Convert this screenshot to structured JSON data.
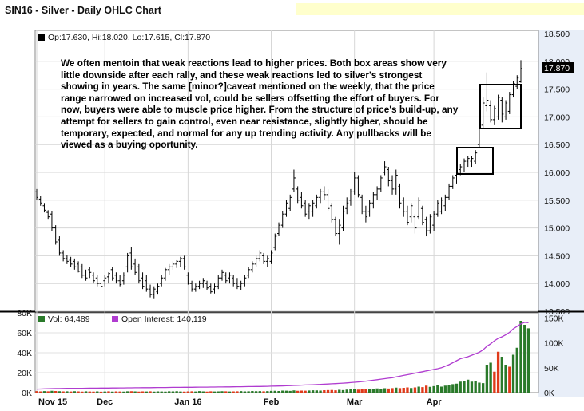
{
  "header": {
    "title": "SIN16 - Silver - Daily OHLC Chart"
  },
  "price_panel": {
    "legend": "Op:17.630, Hi:18.020, Lo:17.615, Cl:17.870",
    "last_price_tag": "17.870",
    "annotation": "We often mentoin that weak reactions lead to higher prices.  Both box areas show very little downside after each rally, and these weak reactions led to silver's strongest showing in years.  The same [minor?]caveat mentioned on the weekly, that the price range narrowed on increased vol, could be sellers offsetting the effort of buyers.  For now, buyers were able to muscle price higher.  From the structure of price's build-up, any attempt for sellers to gain control, even near resistance, slightly higher, should be temporary, expected, and normal for any up trending activity.  Any pullbacks will be viewed as a buying oportunity."
  },
  "volume_panel": {
    "vol_legend": "Vol: 64,489",
    "oi_legend": "Open Interest: 140,119"
  },
  "colors": {
    "ohlc": "#000000",
    "vol_up": "#2a7a2a",
    "vol_down": "#e03a1a",
    "open_interest": "#b03cd0",
    "tag_bg": "#000000",
    "axis_panel": "#e8eef8"
  },
  "chart_data": [
    {
      "type": "ohlc",
      "title": "SIN16 - Silver - Daily OHLC Chart",
      "x_tick_labels": [
        "Nov 15",
        "Dec",
        "Jan 16",
        "Feb",
        "Mar",
        "Apr"
      ],
      "y_ticks": [
        13.5,
        14.0,
        14.5,
        15.0,
        15.5,
        16.0,
        16.5,
        17.0,
        17.5,
        18.0,
        18.5
      ],
      "y_tick_labels": [
        "13.500",
        "14.000",
        "14.500",
        "15.000",
        "15.500",
        "16.000",
        "16.500",
        "17.000",
        "17.500",
        "18.000",
        "18.500"
      ],
      "ylim": [
        13.5,
        18.5
      ],
      "grid": true,
      "series": [
        {
          "name": "Silver",
          "high": [
            15.7,
            15.58,
            15.45,
            15.32,
            15.3,
            15.05,
            14.85,
            14.6,
            14.52,
            14.48,
            14.45,
            14.4,
            14.35,
            14.25,
            14.3,
            14.2,
            14.15,
            14.05,
            14.15,
            14.2,
            14.3,
            14.2,
            14.15,
            14.2,
            14.55,
            14.65,
            14.45,
            14.35,
            14.2,
            14.15,
            13.98,
            13.95,
            14.0,
            14.15,
            14.28,
            14.35,
            14.4,
            14.42,
            14.48,
            14.5,
            14.2,
            14.05,
            14.0,
            14.05,
            14.1,
            14.05,
            14.0,
            14.0,
            14.15,
            14.25,
            14.2,
            14.2,
            14.15,
            14.1,
            14.05,
            14.15,
            14.3,
            14.4,
            14.5,
            14.6,
            14.55,
            14.5,
            14.6,
            14.9,
            15.1,
            15.3,
            15.5,
            15.6,
            16.05,
            15.75,
            15.65,
            15.5,
            15.45,
            15.5,
            15.6,
            15.7,
            15.75,
            15.7,
            15.45,
            15.2,
            15.15,
            15.4,
            15.55,
            15.7,
            16.0,
            15.95,
            15.6,
            15.4,
            15.5,
            15.65,
            15.75,
            15.95,
            16.2,
            16.1,
            15.95,
            16.05,
            15.8,
            15.55,
            15.4,
            15.45,
            15.25,
            15.55,
            15.4,
            15.2,
            15.25,
            15.3,
            15.5,
            15.55,
            15.6,
            15.8,
            15.95,
            16.05,
            16.15,
            16.25,
            16.3,
            16.3,
            16.4,
            16.9,
            17.35,
            17.8,
            17.3,
            17.2,
            17.4,
            17.35,
            17.3,
            17.45,
            17.65,
            17.75,
            18.02
          ],
          "low": [
            15.5,
            15.4,
            15.28,
            15.15,
            14.95,
            14.7,
            14.5,
            14.4,
            14.35,
            14.3,
            14.25,
            14.2,
            14.1,
            14.05,
            14.1,
            14.0,
            13.95,
            13.9,
            13.95,
            14.0,
            14.05,
            14.0,
            13.95,
            13.98,
            14.2,
            14.25,
            14.15,
            14.0,
            13.9,
            13.85,
            13.75,
            13.72,
            13.8,
            13.95,
            14.05,
            14.15,
            14.25,
            14.28,
            14.3,
            14.25,
            13.98,
            13.85,
            13.85,
            13.9,
            13.92,
            13.88,
            13.82,
            13.82,
            13.9,
            14.05,
            14.0,
            14.0,
            13.95,
            13.9,
            13.88,
            13.95,
            14.1,
            14.2,
            14.3,
            14.4,
            14.35,
            14.3,
            14.35,
            14.6,
            14.85,
            15.0,
            15.2,
            15.3,
            15.65,
            15.45,
            15.35,
            15.2,
            15.15,
            15.2,
            15.35,
            15.45,
            15.5,
            15.3,
            15.1,
            14.85,
            14.7,
            14.95,
            15.25,
            15.4,
            15.6,
            15.55,
            15.25,
            15.1,
            15.2,
            15.35,
            15.5,
            15.65,
            15.95,
            15.75,
            15.6,
            15.6,
            15.35,
            15.2,
            15.05,
            15.1,
            14.9,
            15.15,
            15.05,
            14.85,
            14.9,
            14.95,
            15.2,
            15.25,
            15.3,
            15.5,
            15.7,
            15.8,
            15.95,
            16.0,
            16.1,
            16.1,
            16.15,
            16.45,
            16.8,
            17.1,
            16.9,
            16.85,
            16.95,
            16.9,
            16.95,
            17.05,
            17.35,
            17.5,
            17.615
          ],
          "open": [
            15.65,
            15.52,
            15.4,
            15.28,
            15.25,
            15.0,
            14.78,
            14.55,
            14.45,
            14.42,
            14.4,
            14.35,
            14.3,
            14.15,
            14.25,
            14.15,
            14.1,
            14.0,
            14.05,
            14.12,
            14.25,
            14.15,
            14.05,
            14.05,
            14.3,
            14.55,
            14.35,
            14.3,
            14.1,
            14.05,
            13.9,
            13.8,
            13.85,
            14.0,
            14.1,
            14.25,
            14.3,
            14.35,
            14.4,
            14.45,
            14.15,
            14.0,
            13.9,
            13.95,
            14.0,
            14.0,
            13.95,
            13.9,
            13.95,
            14.1,
            14.15,
            14.1,
            14.1,
            14.0,
            13.95,
            14.0,
            14.15,
            14.25,
            14.35,
            14.45,
            14.5,
            14.4,
            14.4,
            14.65,
            14.9,
            15.05,
            15.25,
            15.35,
            15.7,
            15.7,
            15.55,
            15.45,
            15.3,
            15.3,
            15.4,
            15.55,
            15.65,
            15.6,
            15.4,
            15.15,
            14.9,
            15.0,
            15.35,
            15.5,
            15.65,
            15.9,
            15.55,
            15.3,
            15.3,
            15.45,
            15.6,
            15.7,
            16.0,
            16.05,
            15.85,
            15.7,
            15.75,
            15.5,
            15.3,
            15.2,
            15.2,
            15.2,
            15.35,
            15.15,
            14.95,
            15.05,
            15.25,
            15.3,
            15.4,
            15.55,
            15.75,
            15.95,
            16.05,
            16.15,
            16.2,
            16.2,
            16.2,
            16.5,
            16.85,
            17.2,
            17.2,
            16.95,
            17.0,
            17.3,
            17.0,
            17.1,
            17.4,
            17.55,
            17.63
          ],
          "close": [
            15.55,
            15.45,
            15.32,
            15.2,
            15.0,
            14.75,
            14.55,
            14.45,
            14.4,
            14.35,
            14.3,
            14.22,
            14.15,
            14.1,
            14.2,
            14.05,
            14.0,
            13.95,
            14.1,
            14.18,
            14.1,
            14.05,
            13.98,
            14.15,
            14.5,
            14.3,
            14.2,
            14.05,
            13.95,
            13.9,
            13.8,
            13.9,
            13.95,
            14.1,
            14.25,
            14.3,
            14.35,
            14.4,
            14.45,
            14.3,
            14.0,
            13.9,
            13.95,
            14.0,
            14.05,
            13.92,
            13.85,
            13.95,
            14.1,
            14.2,
            14.05,
            14.15,
            14.0,
            13.95,
            14.0,
            14.1,
            14.25,
            14.35,
            14.45,
            14.55,
            14.4,
            14.45,
            14.55,
            14.85,
            15.05,
            15.25,
            15.45,
            15.55,
            15.9,
            15.5,
            15.4,
            15.25,
            15.4,
            15.45,
            15.55,
            15.65,
            15.6,
            15.35,
            15.15,
            14.9,
            15.05,
            15.3,
            15.45,
            15.65,
            15.9,
            15.6,
            15.3,
            15.2,
            15.45,
            15.6,
            15.7,
            15.9,
            16.1,
            15.85,
            15.7,
            15.95,
            15.45,
            15.3,
            15.1,
            15.4,
            15.0,
            15.5,
            15.1,
            14.95,
            15.2,
            15.25,
            15.45,
            15.5,
            15.55,
            15.75,
            15.9,
            16.0,
            16.1,
            16.2,
            16.25,
            16.25,
            16.35,
            16.85,
            17.25,
            17.3,
            16.95,
            17.15,
            17.35,
            17.05,
            17.25,
            17.4,
            17.6,
            17.7,
            17.87
          ]
        }
      ]
    },
    {
      "type": "bar",
      "y_tick_labels_left": [
        "0K",
        "20K",
        "40K",
        "60K",
        "80K"
      ],
      "y_tick_labels_right": [
        "0K",
        "50K",
        "100K",
        "150K"
      ],
      "ylim_volume": [
        0,
        80000
      ],
      "ylim_open_interest": [
        0,
        160000
      ],
      "x_tick_labels": [
        "Nov 15",
        "Dec",
        "Jan 16",
        "Feb",
        "Mar",
        "Apr"
      ],
      "series": [
        {
          "name": "Vol",
          "values": [
            1500,
            1200,
            1500,
            1300,
            1800,
            1600,
            1400,
            1200,
            1300,
            1100,
            1400,
            1200,
            1000,
            1300,
            1100,
            1000,
            1200,
            900,
            1100,
            1300,
            1000,
            1200,
            1100,
            1000,
            1300,
            1400,
            1200,
            1000,
            1200,
            1100,
            1300,
            1000,
            1200,
            1100,
            1000,
            1300,
            1200,
            1400,
            1100,
            1000,
            1200,
            1300,
            1100,
            1500,
            1200,
            1000,
            1300,
            1100,
            1200,
            1400,
            1300,
            1100,
            1200,
            1300,
            1500,
            1200,
            1300,
            1600,
            1400,
            1500,
            1300,
            1500,
            1700,
            1800,
            1600,
            2000,
            1900,
            1700,
            2200,
            1800,
            2000,
            1900,
            2100,
            2300,
            2200,
            2000,
            2400,
            2500,
            2600,
            2300,
            2800,
            2500,
            3000,
            3200,
            3500,
            3000,
            3600,
            3200,
            3800,
            4000,
            4200,
            3800,
            4400,
            4100,
            4500,
            5000,
            4500,
            4800,
            5200,
            4600,
            5200,
            6000,
            5500,
            7000,
            5800,
            6500,
            7500,
            6000,
            7000,
            8000,
            8500,
            9000,
            11000,
            12000,
            13000,
            11000,
            12000,
            10000,
            9500,
            28000,
            30000,
            21000,
            41000,
            36000,
            28000,
            26000,
            38000,
            45000,
            72000,
            68000,
            64489
          ],
          "up": [
            0,
            0,
            1,
            0,
            1,
            0,
            1,
            0,
            1,
            0,
            1,
            0,
            0,
            1,
            0,
            0,
            1,
            0,
            1,
            0,
            1,
            0,
            0,
            1,
            1,
            0,
            1,
            0,
            0,
            1,
            0,
            1,
            1,
            1,
            1,
            1,
            1,
            1,
            1,
            0,
            0,
            0,
            1,
            1,
            1,
            0,
            0,
            1,
            1,
            1,
            0,
            1,
            0,
            0,
            1,
            1,
            1,
            1,
            1,
            1,
            0,
            1,
            1,
            1,
            1,
            1,
            1,
            1,
            1,
            0,
            0,
            0,
            1,
            1,
            1,
            1,
            0,
            0,
            0,
            0,
            1,
            1,
            1,
            1,
            1,
            0,
            0,
            0,
            1,
            1,
            1,
            1,
            1,
            0,
            0,
            1,
            0,
            0,
            0,
            1,
            0,
            1,
            0,
            0,
            1,
            1,
            1,
            1,
            1,
            1,
            1,
            1,
            1,
            1,
            1,
            1,
            1,
            1,
            1,
            1,
            1,
            0,
            0,
            1,
            1,
            0,
            1,
            1,
            1,
            1,
            1
          ]
        },
        {
          "name": "Open Interest",
          "values": [
            7000,
            7200,
            7500,
            7800,
            8000,
            8100,
            8200,
            8400,
            8500,
            8500,
            8600,
            8600,
            8700,
            8800,
            8900,
            9000,
            9000,
            9100,
            9200,
            9200,
            9300,
            9300,
            9400,
            9500,
            9600,
            9600,
            9700,
            9800,
            9900,
            10000,
            10000,
            10100,
            10200,
            10300,
            10300,
            10400,
            10500,
            10500,
            10600,
            10700,
            10800,
            10800,
            10900,
            11000,
            11000,
            11100,
            11200,
            11200,
            11300,
            11400,
            11500,
            11600,
            11700,
            11800,
            11900,
            12000,
            12100,
            12200,
            12300,
            12400,
            12500,
            12700,
            12900,
            13100,
            13300,
            13500,
            13800,
            14100,
            14400,
            14700,
            15000,
            15300,
            15600,
            15900,
            16200,
            16500,
            16900,
            17300,
            17700,
            18100,
            18500,
            19000,
            19600,
            20200,
            20800,
            21500,
            22300,
            23100,
            24000,
            25000,
            26000,
            27000,
            28000,
            29000,
            30000,
            31500,
            33000,
            34500,
            36000,
            37500,
            39000,
            40500,
            42000,
            43500,
            45000,
            46500,
            48000,
            50000,
            53000,
            56000,
            60000,
            64000,
            68000,
            70000,
            72000,
            75000,
            78000,
            81000,
            86000,
            93000,
            98000,
            104000,
            109000,
            112000,
            116000,
            121000,
            128000,
            133000,
            138000,
            141000,
            140119
          ]
        }
      ]
    }
  ]
}
